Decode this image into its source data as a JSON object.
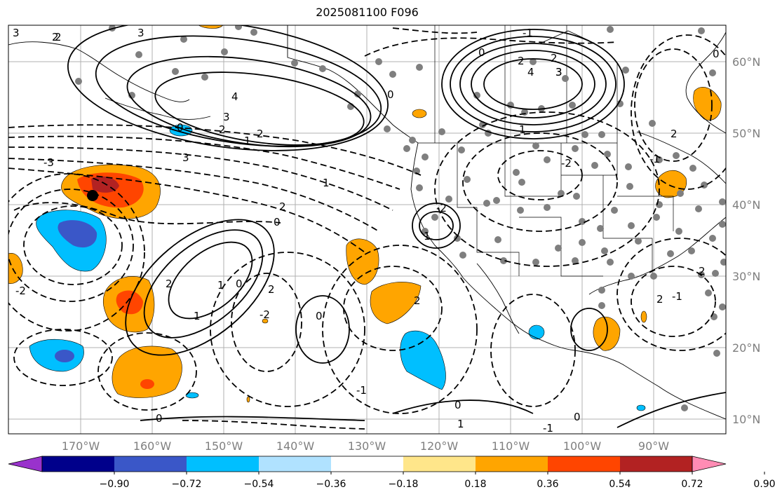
{
  "title": "2025081100 F096",
  "map": {
    "lon_labels": [
      "170°W",
      "160°W",
      "150°W",
      "140°W",
      "130°W",
      "120°W",
      "110°W",
      "100°W",
      "90°W"
    ],
    "lat_labels": [
      "60°N",
      "50°N",
      "40°N",
      "30°N",
      "20°N",
      "10°N"
    ],
    "contour_labels": [
      "3",
      "2",
      "3",
      "4",
      "3",
      "2",
      "1",
      "2",
      "3",
      "-3",
      "0",
      "2",
      "1",
      "2",
      "4",
      "3",
      "2",
      "1",
      "2",
      "-1",
      "0",
      "-2",
      "-1",
      "0",
      "2",
      "1",
      "3",
      "-2",
      "0",
      "0",
      "-2",
      "2",
      "1",
      "-1",
      "0",
      "1",
      "2",
      "2",
      "-2",
      "0",
      "1",
      "-1",
      "2",
      "0",
      "-1",
      "2",
      "0",
      "0"
    ],
    "fill_colors": {
      "neg_strong": "#3a57c8",
      "neg_mid": "#00bfff",
      "pos_mid": "#ffa500",
      "pos_high": "#ff4500",
      "pos_max": "#b22222"
    }
  },
  "colorbar": {
    "colors": [
      "#9932cc",
      "#00008b",
      "#3a57c8",
      "#00bfff",
      "#b0e2ff",
      "#ffffff",
      "#ffe68a",
      "#ffa500",
      "#ff4500",
      "#b22222",
      "#ff8cb4"
    ],
    "tick_labels": [
      "−0.90",
      "−0.72",
      "−0.54",
      "−0.36",
      "−0.18",
      "0.18",
      "0.36",
      "0.54",
      "0.72",
      "0.90"
    ]
  }
}
